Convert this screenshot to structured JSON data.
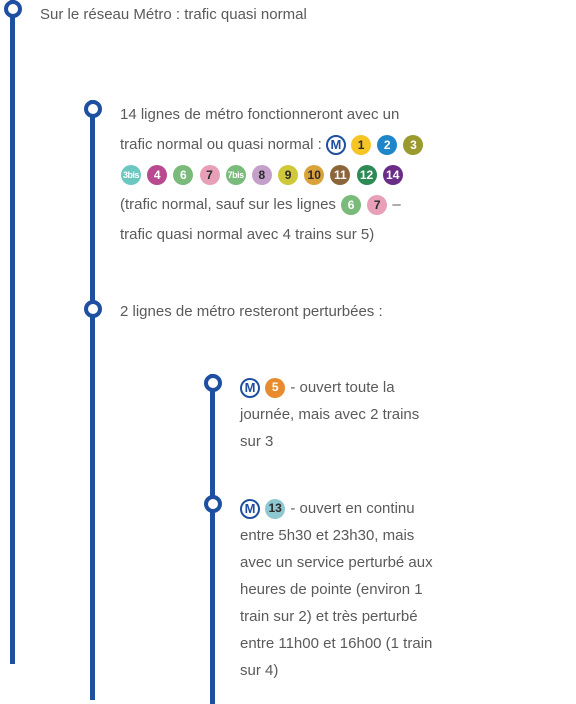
{
  "colors": {
    "line": "#1f4fa0",
    "text": "#5a5a5a",
    "bg": "#ffffff"
  },
  "metro_logo": "M",
  "level1": {
    "title": "Sur le réseau Métro : trafic quasi normal"
  },
  "section1": {
    "prefix": "14 lignes de métro fonctionneront avec un trafic normal ou quasi normal : ",
    "after_badges_prefix": " (trafic normal, sauf sur les lignes ",
    "dash": " – ",
    "suffix": "trafic quasi normal avec 4 trains sur 5)",
    "badges_main": [
      {
        "label": "1",
        "bg": "#f5c425",
        "dark": true
      },
      {
        "label": "2",
        "bg": "#1f87c9",
        "dark": false
      },
      {
        "label": "3",
        "bg": "#9a9a2e",
        "dark": false
      },
      {
        "label": "3bis",
        "bg": "#6bc8c0",
        "dark": false,
        "bis": true
      },
      {
        "label": "4",
        "bg": "#b94a8f",
        "dark": false
      },
      {
        "label": "6",
        "bg": "#7aba7a",
        "dark": false
      },
      {
        "label": "7",
        "bg": "#e7a0b8",
        "dark": true
      },
      {
        "label": "7bis",
        "bg": "#7aba7a",
        "dark": false,
        "bis": true
      },
      {
        "label": "8",
        "bg": "#c49fc9",
        "dark": true
      },
      {
        "label": "9",
        "bg": "#cfc83b",
        "dark": true
      },
      {
        "label": "10",
        "bg": "#d9a23a",
        "dark": true
      },
      {
        "label": "11",
        "bg": "#8d653b",
        "dark": false
      },
      {
        "label": "12",
        "bg": "#2d8a55",
        "dark": false
      },
      {
        "label": "14",
        "bg": "#6a2c86",
        "dark": false
      }
    ],
    "badges_exception": [
      {
        "label": "6",
        "bg": "#7aba7a",
        "dark": false
      },
      {
        "label": "7",
        "bg": "#e7a0b8",
        "dark": true
      }
    ]
  },
  "section2": {
    "title": "2 lignes de métro resteront perturbées :"
  },
  "sub1": {
    "badge": {
      "label": "5",
      "bg": "#e88b2e",
      "dark": false
    },
    "text": " - ouvert toute la journée, mais avec 2 trains sur 3"
  },
  "sub2": {
    "badge": {
      "label": "13",
      "bg": "#8fc7d1",
      "dark": true
    },
    "text": " - ouvert en continu entre 5h30 et 23h30, mais avec un service perturbé aux heures de pointe (environ 1 train sur 2) et très perturbé entre 11h00 et 16h00 (1 train sur 4)"
  }
}
